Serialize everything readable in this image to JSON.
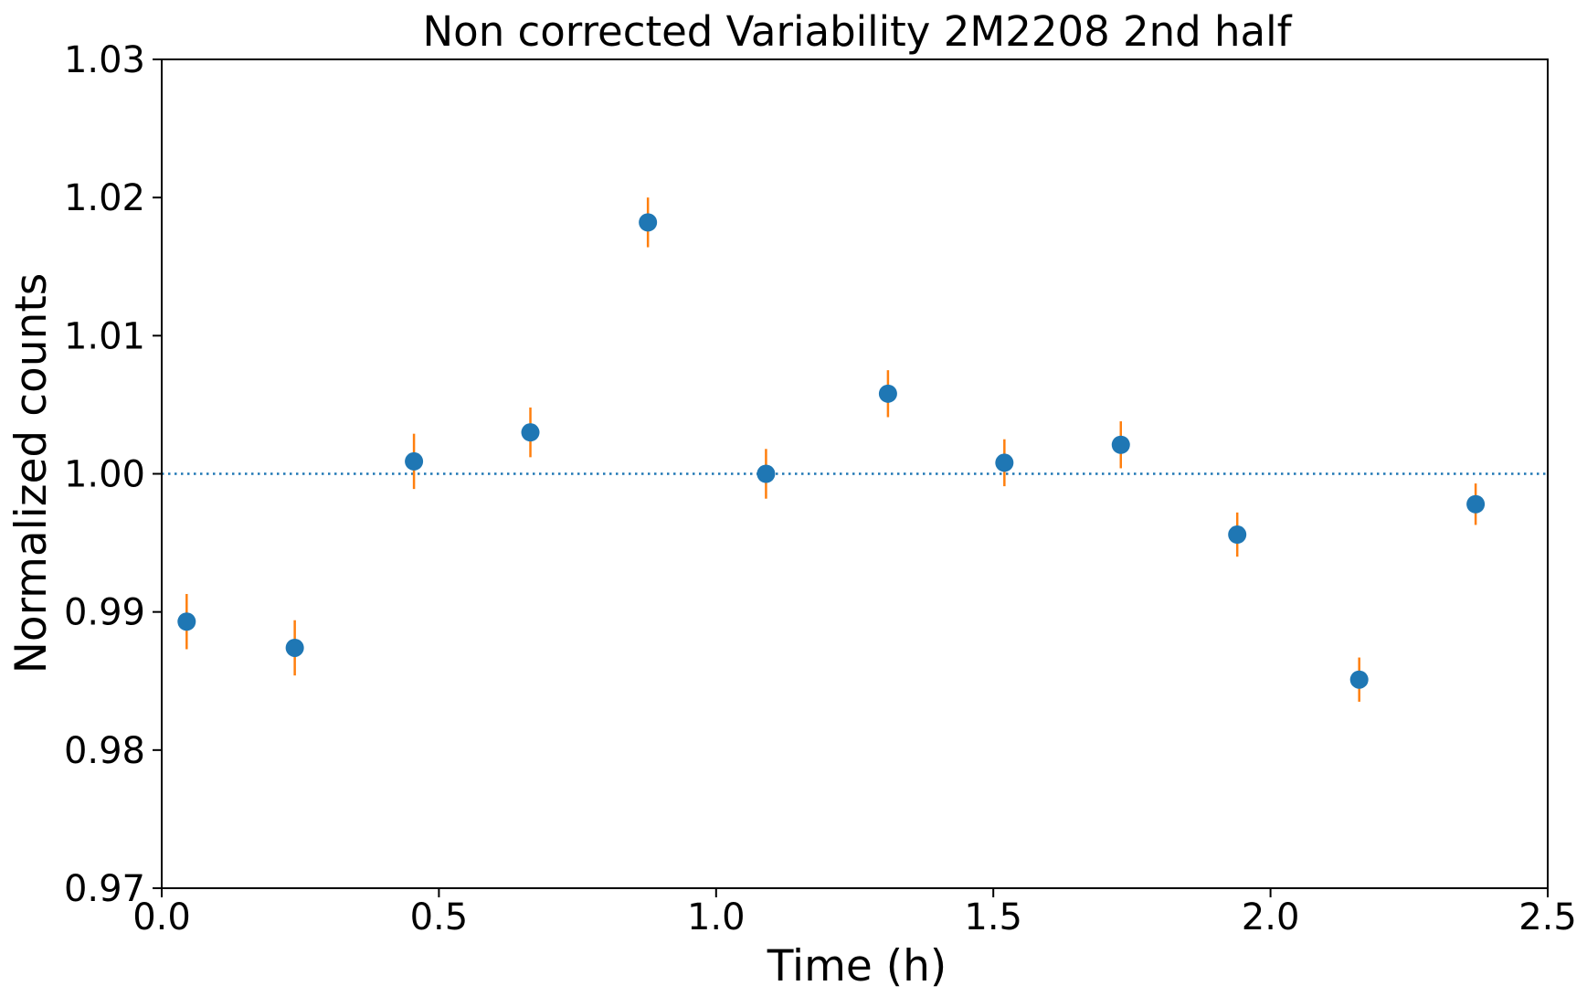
{
  "chart_data": {
    "type": "scatter",
    "title": "Non corrected Variability 2M2208 2nd half",
    "xlabel": "Time (h)",
    "ylabel": "Normalized counts",
    "xlim": [
      0.0,
      2.5
    ],
    "ylim": [
      0.97,
      1.03
    ],
    "grid": false,
    "x_ticks": [
      "0.0",
      "0.5",
      "1.0",
      "1.5",
      "2.0",
      "2.5"
    ],
    "y_ticks": [
      "0.97",
      "0.98",
      "0.99",
      "1.00",
      "1.01",
      "1.02",
      "1.03"
    ],
    "series": [
      {
        "x": [
          0.045,
          0.24,
          0.455,
          0.665,
          0.877,
          1.09,
          1.31,
          1.52,
          1.73,
          1.94,
          2.16,
          2.37
        ],
        "y": [
          0.9893,
          0.9874,
          1.0009,
          1.003,
          1.0182,
          1.0,
          1.0058,
          1.0008,
          1.0021,
          0.9956,
          0.9851,
          0.9978
        ],
        "yerr": [
          0.002,
          0.002,
          0.002,
          0.0018,
          0.0018,
          0.0018,
          0.0017,
          0.0017,
          0.0017,
          0.0016,
          0.0016,
          0.0015
        ],
        "marker_color": "#1f77b4",
        "errorbar_color": "#ff7f0e"
      }
    ],
    "reference_line": {
      "y": 1.0,
      "style": "dotted",
      "color": "#1f77b4"
    },
    "colors": {
      "axes": "#000000",
      "background": "#ffffff"
    }
  }
}
